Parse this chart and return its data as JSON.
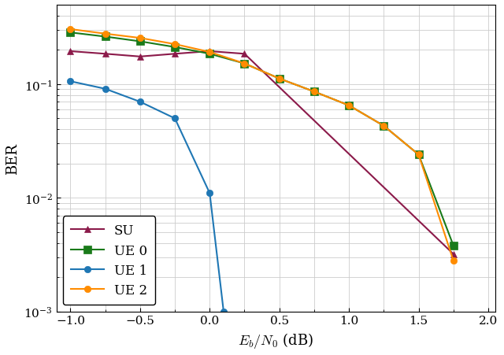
{
  "title": "",
  "xlabel": "$E_b/N_0$ (dB)",
  "ylabel": "BER",
  "xlim": [
    -1.1,
    2.05
  ],
  "ylim": [
    0.001,
    0.5
  ],
  "series": [
    {
      "label": "SU",
      "color": "#8B1A4A",
      "marker": "^",
      "markersize": 6,
      "linewidth": 1.5,
      "x": [
        -1.0,
        -0.75,
        -0.5,
        -0.25,
        0.0,
        0.25,
        1.75
      ],
      "y": [
        0.195,
        0.185,
        0.175,
        0.185,
        0.195,
        0.185,
        0.0032
      ]
    },
    {
      "label": "UE 0",
      "color": "#1a7a1a",
      "marker": "s",
      "markersize": 7,
      "linewidth": 1.5,
      "x": [
        -1.0,
        -0.75,
        -0.5,
        -0.25,
        0.0,
        0.25,
        0.5,
        0.75,
        1.0,
        1.25,
        1.5,
        1.75
      ],
      "y": [
        0.285,
        0.262,
        0.238,
        0.212,
        0.185,
        0.152,
        0.112,
        0.086,
        0.065,
        0.043,
        0.024,
        0.0038
      ]
    },
    {
      "label": "UE 1",
      "color": "#1f77b4",
      "marker": "o",
      "markersize": 6,
      "linewidth": 1.5,
      "x": [
        -1.0,
        -0.75,
        -0.5,
        -0.25,
        0.0,
        0.1
      ],
      "y": [
        0.106,
        0.091,
        0.07,
        0.05,
        0.011,
        0.001
      ]
    },
    {
      "label": "UE 2",
      "color": "#FF8C00",
      "marker": "o",
      "markersize": 6,
      "linewidth": 1.5,
      "x": [
        -1.0,
        -0.75,
        -0.5,
        -0.25,
        0.0,
        0.25,
        0.5,
        0.75,
        1.0,
        1.25,
        1.5,
        1.75
      ],
      "y": [
        0.305,
        0.278,
        0.255,
        0.225,
        0.192,
        0.152,
        0.112,
        0.086,
        0.065,
        0.043,
        0.024,
        0.0028
      ]
    }
  ],
  "legend": {
    "loc": "lower left",
    "fontsize": 12,
    "framealpha": 1.0,
    "edgecolor": "black"
  },
  "xlabel_fontsize": 13,
  "ylabel_fontsize": 13,
  "tick_fontsize": 11,
  "spine_color": "black",
  "background": "#ffffff",
  "grid_color": "#cccccc",
  "grid_linewidth": 0.6
}
